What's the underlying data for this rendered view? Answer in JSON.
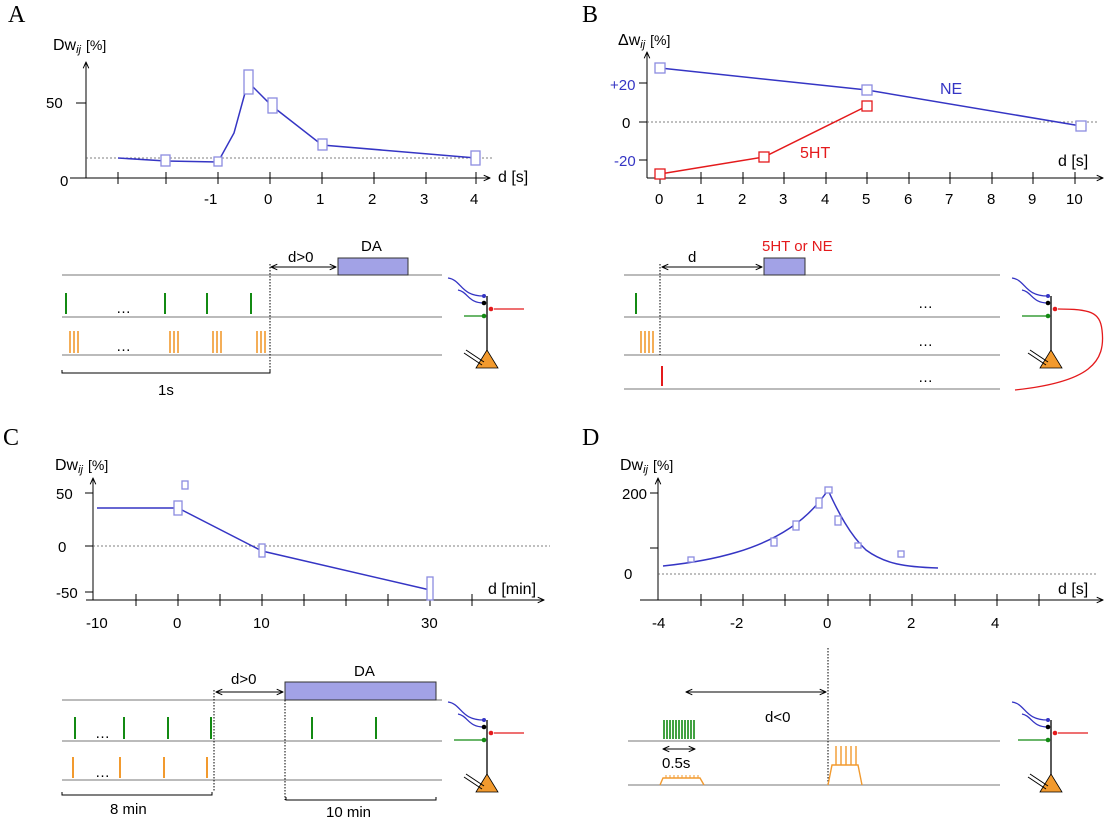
{
  "panels": [
    {
      "id": "A",
      "label": "A",
      "ylabel_main": "Dw",
      "ylabel_sub": "ij",
      "ylabel_unit": "[%]",
      "xlabel": "d [s]",
      "ytick_labels": [
        "50",
        "0"
      ],
      "xtick_labels": [
        "-1",
        "0",
        "1",
        "2",
        "3",
        "4"
      ],
      "protocol": {
        "delay_label": "d>0",
        "neuromod_label": "DA",
        "ellipsis": "…",
        "duration_label": "1s"
      }
    },
    {
      "id": "B",
      "label": "B",
      "ylabel_main": "Δw",
      "ylabel_sub": "ij",
      "ylabel_unit": "[%]",
      "xlabel": "d [s]",
      "ytick_labels": [
        "+20",
        "0",
        "-20"
      ],
      "xtick_labels": [
        "0",
        "1",
        "2",
        "3",
        "4",
        "5",
        "6",
        "7",
        "8",
        "9",
        "10"
      ],
      "protocol": {
        "delay_label": "d",
        "neuromod_label": "5HT or NE",
        "ellipsis": "…"
      }
    },
    {
      "id": "C",
      "label": "C",
      "ylabel_main": "Dw",
      "ylabel_sub": "ij",
      "ylabel_unit": "[%]",
      "xlabel": "d [min]",
      "ytick_labels": [
        "50",
        "0",
        "-50"
      ],
      "xtick_labels": [
        "-10",
        "0",
        "10",
        "30"
      ],
      "protocol": {
        "delay_label": "d>0",
        "neuromod_label": "DA",
        "ellipsis": "…",
        "duration_label_1": "8 min",
        "duration_label_2": "10 min"
      }
    },
    {
      "id": "D",
      "label": "D",
      "ylabel_main": "Dw",
      "ylabel_sub": "ij",
      "ylabel_unit": "[%]",
      "xlabel": "d [s]",
      "ytick_labels": [
        "200",
        "0"
      ],
      "xtick_labels": [
        "-4",
        "-2",
        "0",
        "2",
        "4"
      ],
      "protocol": {
        "delay_label": "d<0",
        "burst_label": "0.5s"
      }
    }
  ],
  "colors": {
    "blue": "#3535c4",
    "red": "#e41a1c",
    "green": "#138a13",
    "orange": "#f29a2e",
    "bar": "#a2a2e6",
    "marker": "#8c8ce0"
  },
  "chart_data": [
    {
      "type": "line",
      "panel": "A",
      "xlabel": "d [s]",
      "ylabel": "Dwij [%]",
      "series": [
        {
          "x": [
            -2.9,
            -1.9,
            -1.0,
            -0.7,
            -0.4,
            0.0,
            1.0,
            4.0
          ],
          "y": [
            13,
            12,
            11,
            30,
            64,
            48,
            22,
            14
          ]
        }
      ],
      "markers": {
        "x": [
          -1.9,
          -1.0,
          -0.4,
          0.0,
          1.0,
          4.0
        ],
        "y": [
          12,
          11,
          64,
          48,
          22,
          14
        ]
      },
      "baseline_dashed": 13
    },
    {
      "type": "line",
      "panel": "B",
      "xlabel": "d [s]",
      "ylabel": "Δwij [%]",
      "series": [
        {
          "name": "NE",
          "x": [
            0,
            5,
            10
          ],
          "y": [
            28,
            16,
            -3
          ]
        },
        {
          "name": "5HT",
          "x": [
            0,
            2.5,
            5
          ],
          "y": [
            -26,
            -18,
            9
          ]
        }
      ],
      "xlim": [
        0,
        10
      ]
    },
    {
      "type": "line",
      "panel": "C",
      "xlabel": "d [min]",
      "ylabel": "Dwij [%]",
      "series": [
        {
          "x": [
            -10,
            0,
            10,
            30
          ],
          "y": [
            38,
            38,
            -5,
            -42
          ]
        }
      ],
      "markers": {
        "x": [
          0,
          10,
          30
        ],
        "y": [
          38,
          -5,
          -42
        ]
      },
      "outlier": {
        "x": 1,
        "y": 62
      }
    },
    {
      "type": "line",
      "panel": "D",
      "xlabel": "d [s]",
      "ylabel": "Dwij [%]",
      "series": [
        {
          "x": [
            -4,
            -3,
            -2,
            -1,
            -0.5,
            0,
            0.5,
            1,
            1.5,
            2,
            2.6
          ],
          "y": [
            25,
            38,
            57,
            100,
            145,
            210,
            145,
            85,
            50,
            32,
            22
          ]
        }
      ],
      "markers": {
        "x": [
          -3.2,
          -1.2,
          -0.6,
          -0.2,
          0.0,
          0.25,
          0.7,
          1.7
        ],
        "y": [
          35,
          85,
          122,
          180,
          210,
          140,
          72,
          52
        ]
      }
    }
  ]
}
